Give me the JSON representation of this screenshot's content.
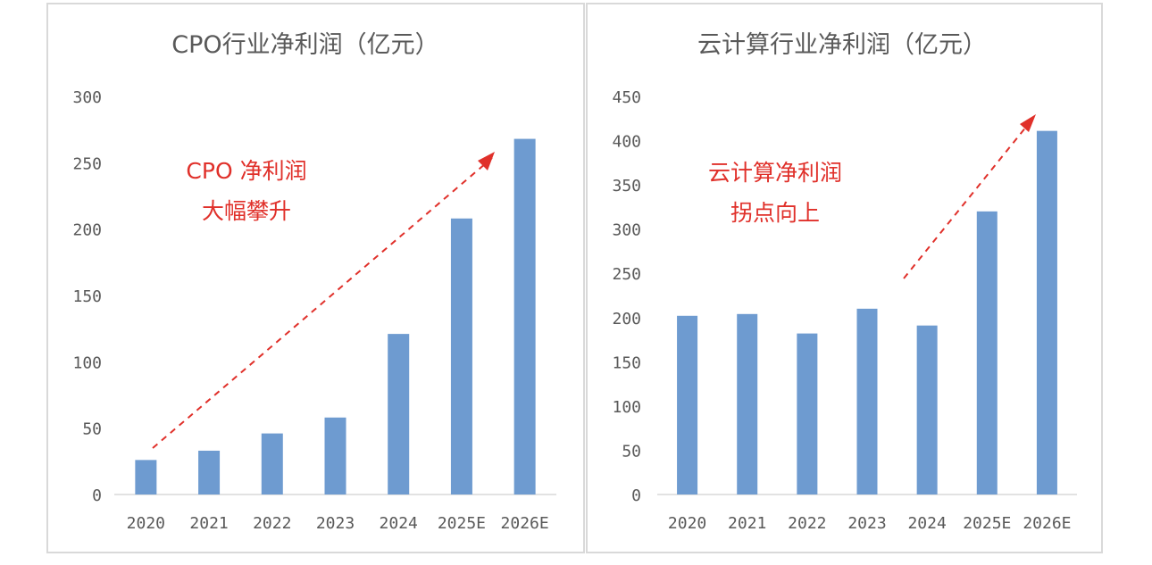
{
  "chart_data": [
    {
      "type": "bar",
      "title": "CPO行业净利润（亿元）",
      "categories": [
        "2020",
        "2021",
        "2022",
        "2023",
        "2024",
        "2025E",
        "2026E"
      ],
      "values": [
        26,
        33,
        46,
        58,
        121,
        208,
        268
      ],
      "ylim": [
        0,
        300
      ],
      "yticks": [
        "0",
        "50",
        "100",
        "150",
        "200",
        "250",
        "300"
      ],
      "grid": false,
      "bar_color": "#6e9bd0",
      "annotation": [
        "CPO 净利润",
        "大幅攀升"
      ],
      "annotation_color": "#e0302a"
    },
    {
      "type": "bar",
      "title": "云计算行业净利润（亿元）",
      "categories": [
        "2020",
        "2021",
        "2022",
        "2023",
        "2024",
        "2025E",
        "2026E"
      ],
      "values": [
        202,
        204,
        182,
        210,
        191,
        320,
        411
      ],
      "ylim": [
        0,
        450
      ],
      "yticks": [
        "0",
        "50",
        "100",
        "150",
        "200",
        "250",
        "300",
        "350",
        "400",
        "450"
      ],
      "grid": false,
      "bar_color": "#6e9bd0",
      "annotation": [
        "云计算净利润",
        "拐点向上"
      ],
      "annotation_color": "#e0302a"
    }
  ]
}
